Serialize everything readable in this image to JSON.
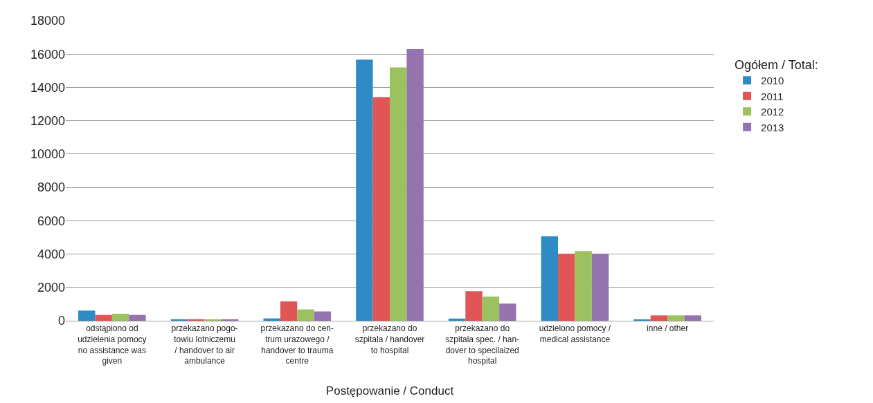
{
  "chart_data": {
    "type": "bar",
    "xlabel": "Postępowanie / Conduct",
    "legend_title": "Ogółem / Total:",
    "categories": [
      "odstąpiono od\nudzielenia pomocy\nno assistance was\ngiven",
      "przekazano pogo-\ntowiu lotniczemu\n/ handover to air\nambulance",
      "przekazano do cen-\ntrum urazowego /\nhandover to trauma\ncentre",
      "przekazano do\nszpitala / handover\nto hospital",
      "przekazano do\nszpitala spec. / han-\ndover to specilaized\nhospital",
      "udzielono pomocy /\nmedical assistance",
      "inne / other"
    ],
    "series": [
      {
        "name": "2010",
        "color": "#2e8bc6",
        "values": [
          610,
          90,
          140,
          15670,
          130,
          5070,
          80
        ]
      },
      {
        "name": "2011",
        "color": "#e05555",
        "values": [
          350,
          90,
          1160,
          13420,
          1770,
          4020,
          320
        ]
      },
      {
        "name": "2012",
        "color": "#9bc25e",
        "values": [
          420,
          90,
          680,
          15200,
          1450,
          4180,
          320
        ]
      },
      {
        "name": "2013",
        "color": "#9473ae",
        "values": [
          350,
          90,
          560,
          16300,
          1030,
          4020,
          320
        ]
      }
    ],
    "ylim": [
      0,
      18000
    ],
    "yticks": [
      0,
      2000,
      4000,
      6000,
      8000,
      10000,
      12000,
      14000,
      16000,
      18000
    ],
    "grid": "y",
    "legend": "right"
  }
}
